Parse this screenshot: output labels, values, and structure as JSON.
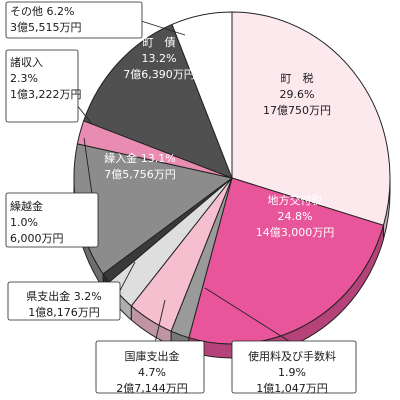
{
  "chart_data": {
    "type": "pie",
    "style": "3d",
    "title": "",
    "slices": [
      {
        "name": "町　税",
        "percent_label": "29.6%",
        "amount_label": "17億750万円",
        "value": 29.6,
        "color": "#fbe9ee"
      },
      {
        "name": "地方交付税",
        "percent_label": "24.8%",
        "amount_label": "14億3,000万円",
        "value": 24.8,
        "color": "#e8559a"
      },
      {
        "name": "使用料及び手数料",
        "percent_label": "1.9%",
        "amount_label": "1億1,047万円",
        "value": 1.9,
        "color": "#9a9a9a"
      },
      {
        "name": "国庫支出金",
        "percent_label": "4.7%",
        "amount_label": "2億7,144万円",
        "value": 4.7,
        "color": "#f5bfd0"
      },
      {
        "name": "県支出金",
        "percent_label": "3.2%",
        "amount_label": "1億8,176万円",
        "value": 3.2,
        "color": "#dedede"
      },
      {
        "name": "繰越金",
        "percent_label": "1.0%",
        "amount_label": "6,000万円",
        "value": 1.0,
        "color": "#3a3a3a"
      },
      {
        "name": "繰入金",
        "percent_label": "13.1%",
        "amount_label": "7億5,756万円",
        "value": 13.1,
        "color": "#8c8c8c"
      },
      {
        "name": "諸収入",
        "percent_label": "2.3%",
        "amount_label": "1億3,222万円",
        "value": 2.3,
        "color": "#e98cb2"
      },
      {
        "name": "町　債",
        "percent_label": "13.2%",
        "amount_label": "7億6,390万円",
        "value": 13.2,
        "color": "#505050"
      },
      {
        "name": "その他",
        "percent_label": "6.2%",
        "amount_label": "3億5,515万円",
        "value": 6.2,
        "color": "#ffffff"
      }
    ]
  }
}
